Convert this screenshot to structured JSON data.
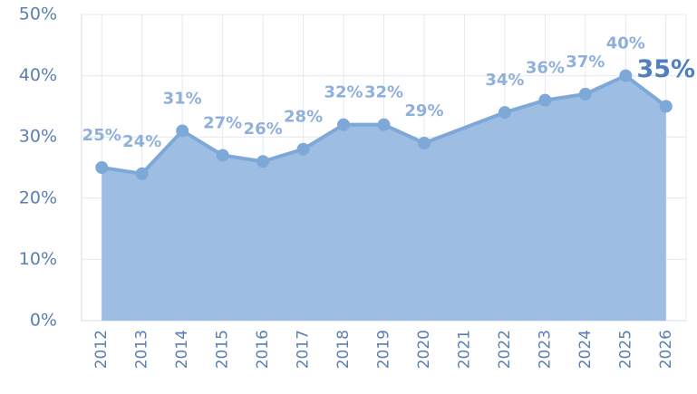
{
  "chart_data": {
    "type": "area",
    "x": [
      2012,
      2013,
      2014,
      2015,
      2016,
      2017,
      2018,
      2019,
      2020,
      2022,
      2023,
      2024,
      2025,
      2026
    ],
    "values": [
      25,
      24,
      31,
      27,
      26,
      28,
      32,
      32,
      29,
      34,
      36,
      37,
      40,
      35
    ],
    "value_labels": [
      "25%",
      "24%",
      "31%",
      "27%",
      "26%",
      "28%",
      "32%",
      "32%",
      "29%",
      "34%",
      "36%",
      "37%",
      "40%",
      "35%"
    ],
    "color": "#7ea8d8",
    "fill": "#9dbde3",
    "xlim": [
      2011.5,
      2026.5
    ],
    "xticks": [
      2012,
      2013,
      2014,
      2015,
      2016,
      2017,
      2018,
      2019,
      2020,
      2021,
      2022,
      2023,
      2024,
      2025,
      2026
    ],
    "ylim": [
      0,
      50
    ],
    "yticks": [
      {
        "value": 0,
        "label": "0%"
      },
      {
        "value": 10,
        "label": "10%"
      },
      {
        "value": 20,
        "label": "20%"
      },
      {
        "value": 30,
        "label": "30%"
      },
      {
        "value": 40,
        "label": "40%"
      },
      {
        "value": 50,
        "label": "50%"
      }
    ],
    "grid": true
  }
}
